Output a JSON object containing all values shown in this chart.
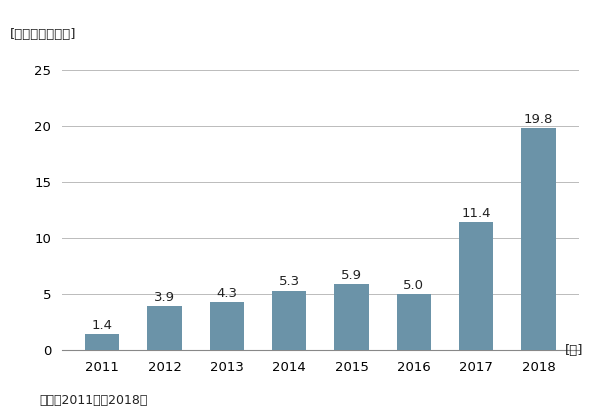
{
  "years": [
    "2011",
    "2012",
    "2013",
    "2014",
    "2015",
    "2016",
    "2017",
    "2018"
  ],
  "values": [
    1.4,
    3.9,
    4.3,
    5.3,
    5.9,
    5.0,
    11.4,
    19.8
  ],
  "bar_color": "#6b93a8",
  "ylabel_text": "[単位：億米ドル]",
  "xlabel_suffix": "[年]",
  "footnote": "期間：2011年～2018年",
  "yticks": [
    0,
    5,
    10,
    15,
    20,
    25
  ],
  "ylim": [
    0,
    26.5
  ],
  "background_color": "#ffffff",
  "grid_color": "#bbbbbb",
  "label_fontsize": 9.5,
  "tick_fontsize": 9.5,
  "footnote_fontsize": 9
}
